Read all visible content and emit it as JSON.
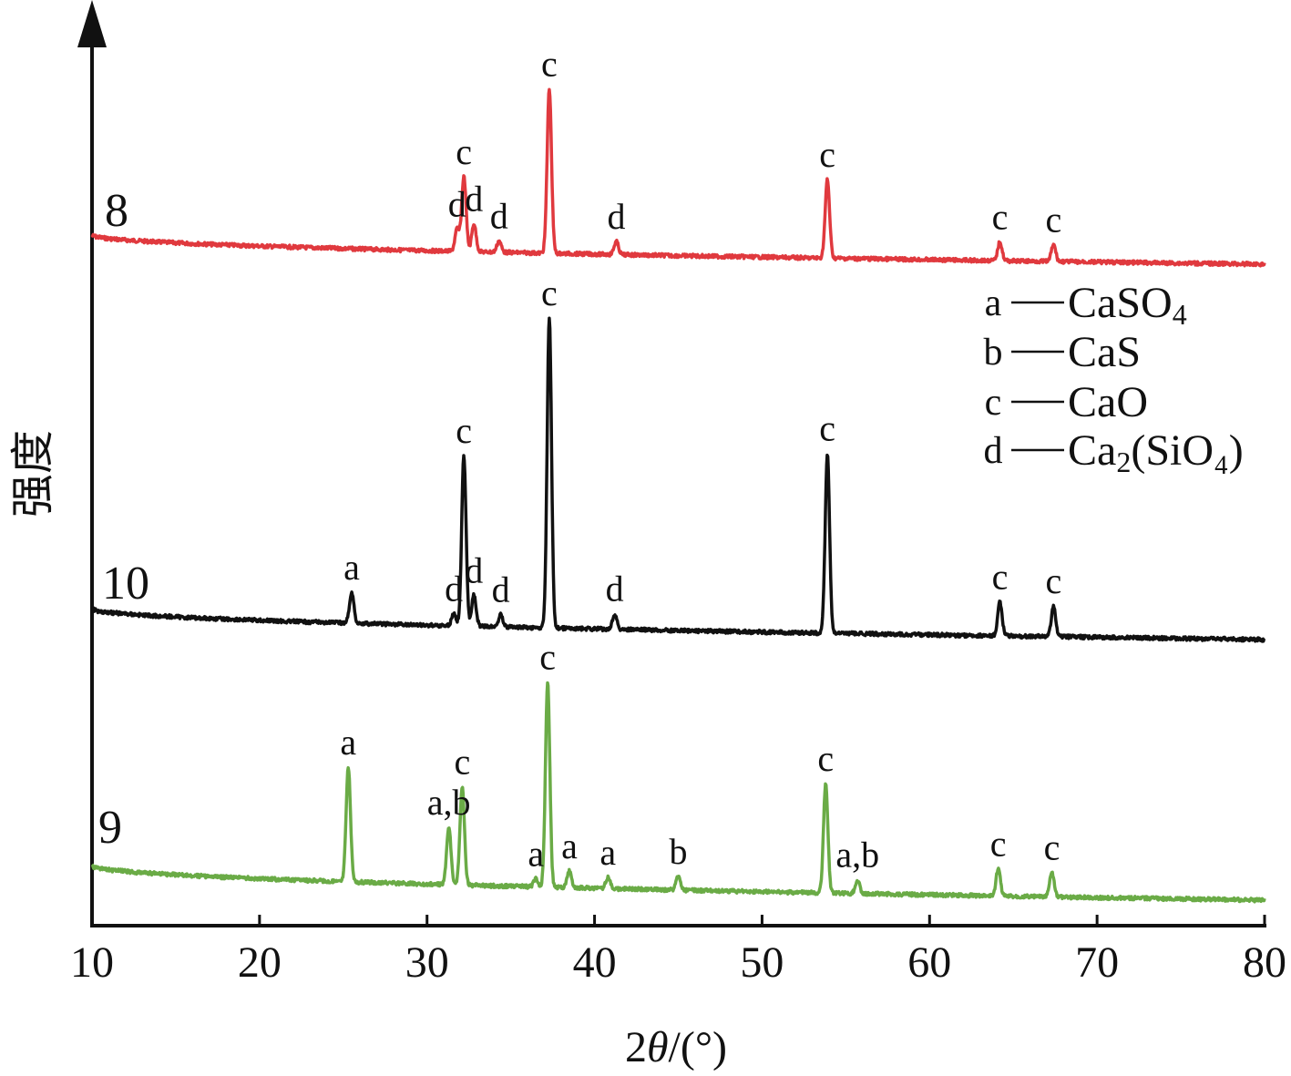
{
  "chart_data": {
    "type": "line",
    "xlabel_prefix": "2",
    "xlabel_theta": "θ",
    "xlabel_suffix": "/(°)",
    "ylabel": "强度",
    "xlim": [
      10,
      80
    ],
    "x_ticks": [
      10,
      20,
      30,
      40,
      50,
      60,
      70,
      80
    ],
    "y_ticks_shown": false,
    "grid": false,
    "legend_position": "right",
    "legend": [
      {
        "key": "a",
        "formula": "CaSO",
        "sub": "4",
        "tail": ""
      },
      {
        "key": "b",
        "formula": "CaS",
        "sub": "",
        "tail": ""
      },
      {
        "key": "c",
        "formula": "CaO",
        "sub": "",
        "tail": ""
      },
      {
        "key": "d",
        "formula": "Ca",
        "sub": "2",
        "tail": "(SiO₄)"
      }
    ],
    "series": [
      {
        "label": "8",
        "color": "#e0393e",
        "peaks": [
          {
            "x": 32.2,
            "h": 0.4,
            "label": "c"
          },
          {
            "x": 37.3,
            "h": 0.88,
            "label": "c"
          },
          {
            "x": 53.9,
            "h": 0.42,
            "label": "c"
          },
          {
            "x": 64.2,
            "h": 0.1,
            "label": "c"
          },
          {
            "x": 67.4,
            "h": 0.09,
            "label": "c"
          },
          {
            "x": 31.8,
            "h": 0.12,
            "label": "d"
          },
          {
            "x": 32.8,
            "h": 0.15,
            "label": "d"
          },
          {
            "x": 34.3,
            "h": 0.06,
            "label": "d"
          },
          {
            "x": 41.3,
            "h": 0.07,
            "label": "d"
          }
        ]
      },
      {
        "label": "10",
        "color": "#111111",
        "peaks": [
          {
            "x": 25.5,
            "h": 0.1,
            "label": "a"
          },
          {
            "x": 32.2,
            "h": 0.55,
            "label": "c"
          },
          {
            "x": 37.3,
            "h": 1.0,
            "label": "c"
          },
          {
            "x": 53.9,
            "h": 0.58,
            "label": "c"
          },
          {
            "x": 64.2,
            "h": 0.11,
            "label": "c"
          },
          {
            "x": 67.4,
            "h": 0.1,
            "label": "c"
          },
          {
            "x": 31.6,
            "h": 0.04,
            "label": "d"
          },
          {
            "x": 32.8,
            "h": 0.1,
            "label": "d"
          },
          {
            "x": 34.4,
            "h": 0.04,
            "label": "d"
          },
          {
            "x": 41.2,
            "h": 0.05,
            "label": "d"
          }
        ]
      },
      {
        "label": "9",
        "color": "#6aab46",
        "peaks": [
          {
            "x": 25.3,
            "h": 0.42,
            "label": "a"
          },
          {
            "x": 31.3,
            "h": 0.21,
            "label": "a,b"
          },
          {
            "x": 32.1,
            "h": 0.36,
            "label": "c"
          },
          {
            "x": 37.2,
            "h": 0.75,
            "label": "c"
          },
          {
            "x": 36.5,
            "h": 0.03,
            "label": "a"
          },
          {
            "x": 38.5,
            "h": 0.06,
            "label": "a"
          },
          {
            "x": 40.8,
            "h": 0.04,
            "label": "a"
          },
          {
            "x": 45.0,
            "h": 0.05,
            "label": "b"
          },
          {
            "x": 53.8,
            "h": 0.4,
            "label": "c"
          },
          {
            "x": 55.7,
            "h": 0.05,
            "label": "a,b"
          },
          {
            "x": 64.1,
            "h": 0.1,
            "label": "c"
          },
          {
            "x": 67.3,
            "h": 0.09,
            "label": "c"
          }
        ]
      }
    ]
  }
}
